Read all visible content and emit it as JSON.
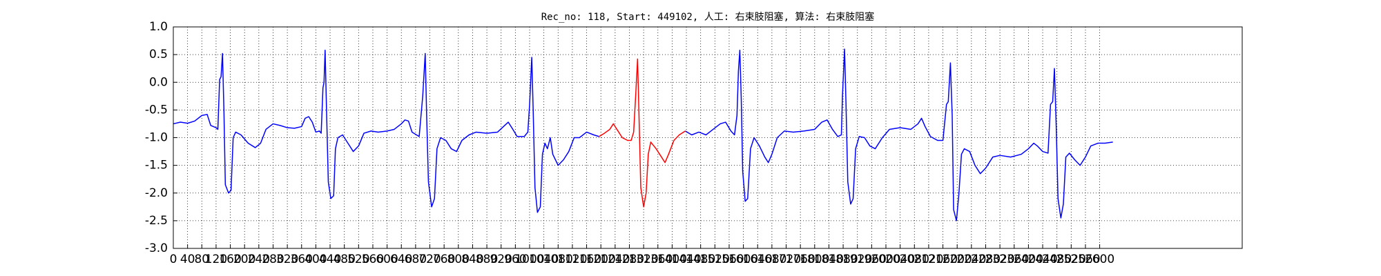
{
  "chart_data": {
    "type": "line",
    "title": "Rec_no: 118, Start: 449102, 人工: 右束肢阻塞, 算法: 右束肢阻塞",
    "xlim": [
      0,
      3000
    ],
    "xticks": [
      0,
      40,
      80,
      120,
      160,
      200,
      240,
      280,
      320,
      360,
      400,
      440,
      480,
      520,
      560,
      600,
      640,
      680,
      720,
      760,
      800,
      840,
      880,
      920,
      960,
      1000,
      1040,
      1080,
      1120,
      1160,
      1200,
      1240,
      1280,
      1320,
      1360,
      1400,
      1440,
      1480,
      1520,
      1560,
      1600,
      1640,
      1680,
      1720,
      1760,
      1800,
      1840,
      1880,
      1920,
      1960,
      2000,
      2040,
      2080,
      2120,
      2160,
      2200,
      2240,
      2280,
      2320,
      2360,
      2400,
      2440,
      2480,
      2520,
      2560,
      2600
    ],
    "ylim": [
      -3,
      1
    ],
    "yticks": [
      {
        "value": -3,
        "label": "-3.0"
      },
      {
        "value": -2.5,
        "label": "-2.5"
      },
      {
        "value": -2,
        "label": "-2.0"
      },
      {
        "value": -1.5,
        "label": "-1.5"
      },
      {
        "value": -1,
        "label": "-1.0"
      },
      {
        "value": -0.5,
        "label": "-0.5"
      },
      {
        "value": 0,
        "label": "0.0"
      },
      {
        "value": 0.5,
        "label": "0.5"
      },
      {
        "value": 1,
        "label": "1.0"
      }
    ],
    "grid": true,
    "series": [
      {
        "color": "#0000ff",
        "x": [
          0,
          20,
          40,
          60,
          80,
          95,
          105,
          120,
          125,
          130,
          134,
          138,
          142,
          146,
          155,
          162,
          168,
          175,
          190,
          210,
          230,
          245,
          260,
          280,
          300,
          320,
          340,
          360,
          370,
          380,
          390,
          400,
          410,
          415,
          420,
          423,
          426,
          430,
          435,
          442,
          450,
          455,
          462,
          475,
          490,
          505,
          520,
          535,
          555,
          575,
          600,
          620,
          640,
          650,
          660,
          670,
          690,
          700,
          707,
          711,
          716,
          725,
          733,
          740,
          750,
          765,
          780,
          795,
          810,
          830,
          850,
          880,
          910,
          930,
          940,
          950,
          965,
          985,
          995,
          1000,
          1006,
          1010,
          1015,
          1022,
          1030,
          1036,
          1043,
          1050,
          1058,
          1065,
          1080,
          1095,
          1110,
          1125,
          1140,
          1160,
          1180,
          1195,
          1300,
          1437,
          1455,
          1475,
          1495,
          1515,
          1535,
          1550,
          1565,
          1575,
          1582,
          1586,
          1590,
          1594,
          1598,
          1605,
          1612,
          1620,
          1630,
          1645,
          1660,
          1670,
          1680,
          1695,
          1715,
          1740,
          1770,
          1800,
          1820,
          1835,
          1850,
          1865,
          1875,
          1878,
          1884,
          1888,
          1893,
          1901,
          1908,
          1915,
          1925,
          1940,
          1955,
          1970,
          1990,
          2010,
          2040,
          2070,
          2090,
          2100,
          2110,
          2125,
          2145,
          2160,
          2170,
          2175,
          2181,
          2186,
          2190,
          2198,
          2205,
          2212,
          2220,
          2235,
          2250,
          2265,
          2280,
          2300,
          2320,
          2350,
          2380,
          2400,
          2415,
          2425,
          2440,
          2455,
          2462,
          2468,
          2473,
          2478,
          2483,
          2491,
          2498,
          2505,
          2515,
          2530,
          2545,
          2560,
          2575,
          2595,
          2615,
          2637
        ],
        "values": [
          -0.75,
          -0.72,
          -0.74,
          -0.7,
          -0.6,
          -0.58,
          -0.78,
          -0.82,
          -0.85,
          0.05,
          0.1,
          0.52,
          -0.5,
          -1.85,
          -2.0,
          -1.95,
          -1.0,
          -0.9,
          -0.95,
          -1.1,
          -1.18,
          -1.1,
          -0.85,
          -0.75,
          -0.78,
          -0.82,
          -0.83,
          -0.8,
          -0.65,
          -0.62,
          -0.72,
          -0.9,
          -0.88,
          -0.92,
          -0.1,
          0.0,
          0.58,
          -0.5,
          -1.8,
          -2.1,
          -2.05,
          -1.2,
          -1.0,
          -0.95,
          -1.1,
          -1.25,
          -1.15,
          -0.92,
          -0.88,
          -0.9,
          -0.88,
          -0.85,
          -0.75,
          -0.68,
          -0.7,
          -0.9,
          -0.98,
          -0.25,
          0.52,
          -0.6,
          -1.8,
          -2.25,
          -2.1,
          -1.2,
          -1.0,
          -1.05,
          -1.2,
          -1.25,
          -1.05,
          -0.95,
          -0.9,
          -0.92,
          -0.9,
          -0.78,
          -0.72,
          -0.82,
          -0.98,
          -0.98,
          -0.9,
          -0.4,
          0.45,
          -0.5,
          -1.9,
          -2.35,
          -2.25,
          -1.3,
          -1.1,
          -1.2,
          -1.0,
          -1.3,
          -1.5,
          -1.4,
          -1.25,
          -1.0,
          -1.0,
          -0.9,
          -0.95,
          -0.98,
          null,
          -0.88,
          -0.95,
          -0.9,
          -0.95,
          -0.85,
          -0.75,
          -0.72,
          -0.88,
          -0.95,
          -0.6,
          0.2,
          0.58,
          -0.3,
          -1.6,
          -2.15,
          -2.1,
          -1.2,
          -1.0,
          -1.15,
          -1.35,
          -1.45,
          -1.3,
          -1.0,
          -0.88,
          -0.9,
          -0.88,
          -0.85,
          -0.72,
          -0.68,
          -0.85,
          -0.98,
          -0.95,
          -0.25,
          0.6,
          -0.4,
          -1.8,
          -2.2,
          -2.1,
          -1.2,
          -0.98,
          -1.0,
          -1.15,
          -1.2,
          -1.0,
          -0.85,
          -0.82,
          -0.85,
          -0.75,
          -0.65,
          -0.8,
          -0.98,
          -1.05,
          -1.05,
          -0.4,
          -0.35,
          0.35,
          -0.6,
          -2.3,
          -2.5,
          -2.0,
          -1.3,
          -1.2,
          -1.25,
          -1.5,
          -1.65,
          -1.55,
          -1.35,
          -1.32,
          -1.35,
          -1.3,
          -1.2,
          -1.1,
          -1.15,
          -1.25,
          -1.28,
          -0.4,
          -0.35,
          0.25,
          -0.8,
          -2.1,
          -2.45,
          -2.2,
          -1.35,
          -1.28,
          -1.4,
          -1.5,
          -1.35,
          -1.15,
          -1.1,
          -1.1,
          -1.08
        ]
      },
      {
        "color": "#ff0000",
        "x": [
          1195,
          1210,
          1225,
          1235,
          1245,
          1260,
          1275,
          1285,
          1292,
          1298,
          1303,
          1307,
          1312,
          1320,
          1327,
          1333,
          1340,
          1355,
          1370,
          1380,
          1390,
          1405,
          1420,
          1437
        ],
        "values": [
          -0.98,
          -0.92,
          -0.85,
          -0.75,
          -0.85,
          -1.0,
          -1.05,
          -1.05,
          -0.9,
          -0.2,
          0.42,
          -0.6,
          -1.9,
          -2.25,
          -2.0,
          -1.3,
          -1.08,
          -1.2,
          -1.35,
          -1.45,
          -1.3,
          -1.05,
          -0.95,
          -0.88
        ]
      }
    ]
  }
}
